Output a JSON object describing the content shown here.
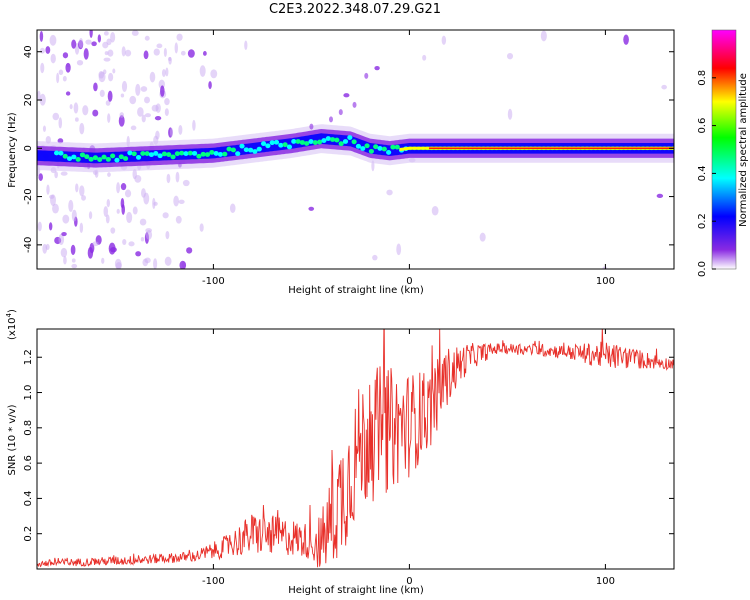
{
  "title": "C2E3.2022.348.07.29.G21",
  "chart_data": [
    {
      "type": "heatmap",
      "xlabel": "Height of straight line (km)",
      "ylabel": "Frequency (Hz)",
      "xlim": [
        -190,
        135
      ],
      "ylim": [
        -50,
        49
      ],
      "xticks": [
        -100,
        0,
        100
      ],
      "yticks": [
        -40,
        -20,
        0,
        20,
        40
      ],
      "ridge_frequency_hz": [
        {
          "x": -190,
          "y": -3
        },
        {
          "x": -160,
          "y": -4
        },
        {
          "x": -130,
          "y": -3
        },
        {
          "x": -100,
          "y": -2
        },
        {
          "x": -80,
          "y": 0
        },
        {
          "x": -60,
          "y": 2
        },
        {
          "x": -45,
          "y": 4
        },
        {
          "x": -30,
          "y": 3
        },
        {
          "x": -20,
          "y": 0
        },
        {
          "x": -10,
          "y": -1
        },
        {
          "x": 0,
          "y": 0
        },
        {
          "x": 135,
          "y": 0
        }
      ],
      "colorbar": {
        "label": "Normalized spectral amplitude",
        "ticks": [
          "0.0",
          "0.2",
          "0.4",
          "0.6",
          "0.8"
        ],
        "range": [
          0,
          1
        ],
        "colors": [
          "#ffffff",
          "#8a2be2",
          "#0000ff",
          "#00ffff",
          "#00ff00",
          "#ffff00",
          "#ff0000",
          "#ff00ff"
        ]
      }
    },
    {
      "type": "line",
      "xlabel": "Height of straight line (km)",
      "ylabel": "SNR (10 * v/v)",
      "y_multiplier": "(x10",
      "y_multiplier_exp": "4",
      "y_multiplier_close": ")",
      "xlim": [
        -190,
        135
      ],
      "ylim": [
        0.0,
        1.36
      ],
      "xticks": [
        -100,
        0,
        100
      ],
      "yticks": [
        0.2,
        0.4,
        0.6,
        0.8,
        1.0,
        1.2
      ],
      "color": "#e8302a",
      "envelope": [
        {
          "x": -190,
          "y": 0.03
        },
        {
          "x": -140,
          "y": 0.05
        },
        {
          "x": -110,
          "y": 0.07
        },
        {
          "x": -95,
          "y": 0.12
        },
        {
          "x": -80,
          "y": 0.2
        },
        {
          "x": -60,
          "y": 0.18
        },
        {
          "x": -45,
          "y": 0.14
        },
        {
          "x": -35,
          "y": 0.4
        },
        {
          "x": -25,
          "y": 0.7
        },
        {
          "x": -15,
          "y": 0.78
        },
        {
          "x": 0,
          "y": 0.82
        },
        {
          "x": 10,
          "y": 0.9
        },
        {
          "x": 20,
          "y": 1.1
        },
        {
          "x": 30,
          "y": 1.2
        },
        {
          "x": 45,
          "y": 1.25
        },
        {
          "x": 70,
          "y": 1.24
        },
        {
          "x": 90,
          "y": 1.22
        },
        {
          "x": 110,
          "y": 1.2
        },
        {
          "x": 135,
          "y": 1.16
        }
      ],
      "noise_amplitude": [
        {
          "x": -190,
          "y": 0.02
        },
        {
          "x": -110,
          "y": 0.03
        },
        {
          "x": -95,
          "y": 0.06
        },
        {
          "x": -80,
          "y": 0.12
        },
        {
          "x": -50,
          "y": 0.1
        },
        {
          "x": -35,
          "y": 0.35
        },
        {
          "x": -15,
          "y": 0.38
        },
        {
          "x": 0,
          "y": 0.3
        },
        {
          "x": 15,
          "y": 0.2
        },
        {
          "x": 30,
          "y": 0.08
        },
        {
          "x": 45,
          "y": 0.03
        },
        {
          "x": 80,
          "y": 0.04
        },
        {
          "x": 100,
          "y": 0.08
        },
        {
          "x": 135,
          "y": 0.03
        }
      ]
    }
  ]
}
